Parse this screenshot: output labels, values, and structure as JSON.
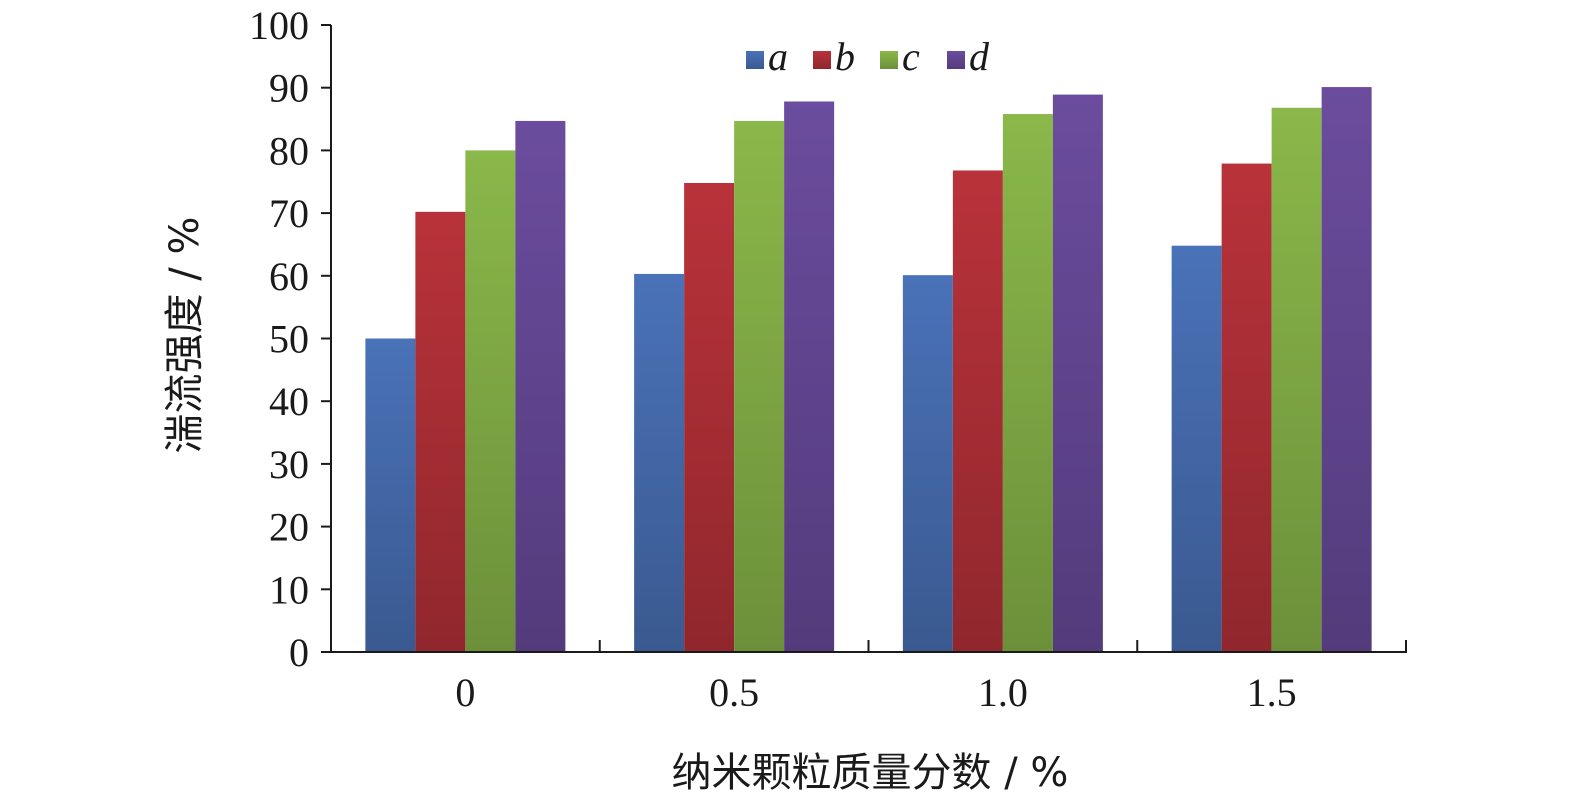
{
  "chart_data": {
    "type": "bar",
    "categories": [
      "0",
      "0.5",
      "1.0",
      "1.5"
    ],
    "series": [
      {
        "name": "a",
        "values": [
          50,
          60.3,
          60.1,
          64.8
        ],
        "color": "#4a72b8"
      },
      {
        "name": "b",
        "values": [
          70.2,
          74.8,
          76.8,
          77.9
        ],
        "color": "#b9323a"
      },
      {
        "name": "c",
        "values": [
          80,
          84.7,
          85.8,
          86.8
        ],
        "color": "#8ab84a"
      },
      {
        "name": "d",
        "values": [
          84.7,
          87.8,
          88.9,
          90.1
        ],
        "color": "#6b4c9e"
      }
    ],
    "xlabel": "纳米颗粒质量分数 / %",
    "ylabel": "湍流强度 / %",
    "ylim": [
      0,
      100
    ],
    "yticks": [
      "0",
      "10",
      "20",
      "30",
      "40",
      "50",
      "60",
      "70",
      "80",
      "90",
      "100"
    ],
    "legend_position": "top-center",
    "grid": false
  }
}
